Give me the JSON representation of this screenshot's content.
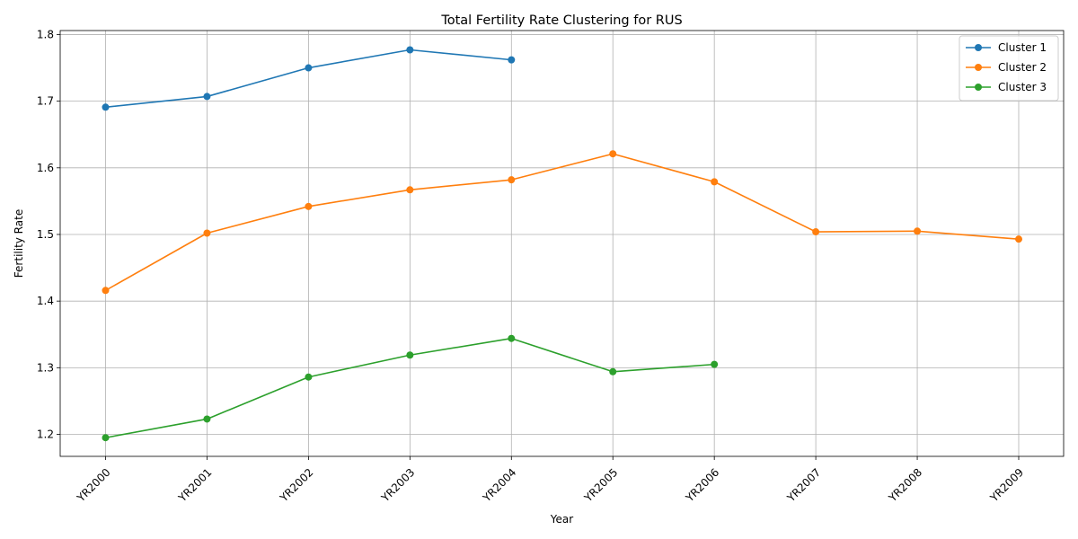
{
  "chart_data": {
    "type": "line",
    "title": "Total Fertility Rate Clustering for RUS",
    "xlabel": "Year",
    "ylabel": "Fertility Rate",
    "categories": [
      "YR2000",
      "YR2001",
      "YR2002",
      "YR2003",
      "YR2004",
      "YR2005",
      "YR2006",
      "YR2007",
      "YR2008",
      "YR2009"
    ],
    "ylim": [
      1.167,
      1.806
    ],
    "yticks": [
      1.2,
      1.3,
      1.4,
      1.5,
      1.6,
      1.7,
      1.8
    ],
    "grid": true,
    "legend_position": "top-right",
    "series": [
      {
        "name": "Cluster 1",
        "color": "#1f77b4",
        "values": [
          1.691,
          1.707,
          1.75,
          1.777,
          1.762,
          null,
          null,
          null,
          null,
          null
        ]
      },
      {
        "name": "Cluster 2",
        "color": "#ff7f0e",
        "values": [
          1.416,
          1.502,
          1.542,
          1.567,
          1.582,
          1.621,
          1.579,
          1.504,
          1.505,
          1.493
        ]
      },
      {
        "name": "Cluster 3",
        "color": "#2ca02c",
        "values": [
          1.195,
          1.223,
          1.286,
          1.319,
          1.344,
          1.294,
          1.305,
          null,
          null,
          null
        ]
      }
    ]
  }
}
